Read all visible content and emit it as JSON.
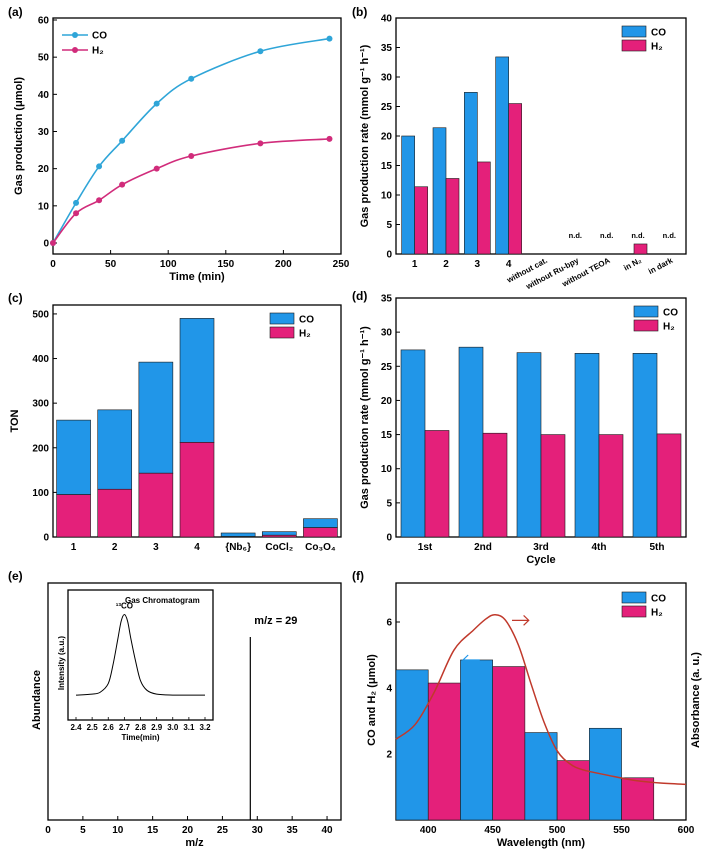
{
  "colors": {
    "co": "#2196E8",
    "h2": "#E4207A",
    "co_line": "#2FA5D8",
    "h2_line": "#D12C7B",
    "absorbance": "#C0392B",
    "axis": "#000000"
  },
  "chart_data": [
    {
      "panel": "(a)",
      "type": "line",
      "xlabel": "Time (min)",
      "ylabel": "Gas production (μmol)",
      "xlim": [
        0,
        250
      ],
      "ylim": [
        0,
        60
      ],
      "xticks": [
        0,
        50,
        100,
        150,
        200,
        250
      ],
      "yticks": [
        0,
        10,
        20,
        30,
        40,
        50,
        60
      ],
      "legend_position": "top-left",
      "series": [
        {
          "name": "CO",
          "x": [
            0,
            20,
            40,
            60,
            90,
            120,
            180,
            240
          ],
          "y": [
            0,
            10.8,
            20.6,
            27.5,
            37.5,
            44.2,
            51.6,
            55.0
          ]
        },
        {
          "name": "H₂",
          "x": [
            0,
            20,
            40,
            60,
            90,
            120,
            180,
            240
          ],
          "y": [
            0,
            8.0,
            11.5,
            15.7,
            20.0,
            23.4,
            26.8,
            28.0
          ]
        }
      ]
    },
    {
      "panel": "(b)",
      "type": "bar",
      "ylabel": "Gas production rate (mmol g⁻¹ h⁻¹)",
      "ylim": [
        0,
        40
      ],
      "yticks": [
        0,
        5,
        10,
        15,
        20,
        25,
        30,
        35,
        40
      ],
      "legend_position": "top-right",
      "categories": [
        "1",
        "2",
        "3",
        "4",
        "without cat.",
        "without Ru-bpy",
        "without TEOA",
        "in N₂",
        "in dark"
      ],
      "annotations": [
        "",
        "",
        "",
        "",
        "",
        "n.d.",
        "n.d.",
        "n.d.",
        "n.d."
      ],
      "series": [
        {
          "name": "CO",
          "values": [
            20.0,
            21.4,
            27.4,
            33.4,
            0,
            0,
            0,
            0,
            0
          ]
        },
        {
          "name": "H₂",
          "values": [
            11.4,
            12.8,
            15.6,
            25.5,
            0,
            0,
            0,
            1.7,
            0
          ]
        }
      ]
    },
    {
      "panel": "(c)",
      "type": "bar",
      "stacked": true,
      "ylabel": "TON",
      "ylim": [
        0,
        520
      ],
      "yticks": [
        0,
        100,
        200,
        300,
        400,
        500
      ],
      "legend_position": "top-right",
      "categories": [
        "1",
        "2",
        "3",
        "4",
        "{Nb₆}",
        "CoCl₂",
        "Co₃O₄"
      ],
      "series": [
        {
          "name": "CO",
          "values": [
            167,
            178,
            249,
            278,
            8,
            8,
            20
          ]
        },
        {
          "name": "H₂",
          "values": [
            95,
            107,
            143,
            212,
            1,
            4,
            21
          ]
        }
      ]
    },
    {
      "panel": "(d)",
      "type": "bar",
      "xlabel": "Cycle",
      "ylabel": "Gas production rate (mmol g⁻¹ h⁻¹)",
      "ylim": [
        0,
        35
      ],
      "yticks": [
        0,
        5,
        10,
        15,
        20,
        25,
        30,
        35
      ],
      "legend_position": "top-right",
      "categories": [
        "1st",
        "2nd",
        "3rd",
        "4th",
        "5th"
      ],
      "series": [
        {
          "name": "CO",
          "values": [
            27.4,
            27.8,
            27.0,
            26.9,
            26.9
          ]
        },
        {
          "name": "H₂",
          "values": [
            15.6,
            15.2,
            15.0,
            15.0,
            15.1
          ]
        }
      ]
    },
    {
      "panel": "(e)",
      "type": "line",
      "xlabel": "m/z",
      "ylabel": "Abundance",
      "xlim": [
        0,
        42
      ],
      "xticks": [
        0,
        5,
        10,
        15,
        20,
        25,
        30,
        35,
        40
      ],
      "annotation": "m/z = 29",
      "peak_x": 29,
      "inset": {
        "title": "Gas Chromatogram",
        "peak_label": "¹³CO",
        "xlabel": "Time(min)",
        "ylabel": "Intensity (a.u.)",
        "xlim": [
          2.4,
          3.2
        ],
        "xticks": [
          "2.4",
          "2.5",
          "2.6",
          "2.7",
          "2.8",
          "2.9",
          "3.0",
          "3.1",
          "3.2"
        ],
        "x": [
          2.4,
          2.5,
          2.55,
          2.6,
          2.63,
          2.66,
          2.68,
          2.7,
          2.72,
          2.74,
          2.77,
          2.8,
          2.84,
          2.9,
          3.0,
          3.1,
          3.2
        ],
        "y": [
          0.03,
          0.04,
          0.06,
          0.15,
          0.35,
          0.62,
          0.8,
          0.87,
          0.8,
          0.62,
          0.38,
          0.18,
          0.08,
          0.04,
          0.03,
          0.03,
          0.03
        ]
      }
    },
    {
      "panel": "(f)",
      "type": "bar",
      "xlabel": "Wavelength (nm)",
      "ylabel": "CO and H₂ (μmol)",
      "ylabel_right": "Absorbance (a. u.)",
      "xlim": [
        375,
        600
      ],
      "xticks": [
        400,
        450,
        500,
        550,
        600
      ],
      "ylim": [
        0,
        7
      ],
      "yticks": [
        2,
        4,
        6
      ],
      "legend_position": "top-right",
      "categories": [
        400,
        450,
        500,
        550
      ],
      "series": [
        {
          "name": "CO",
          "values": [
            4.55,
            4.85,
            2.65,
            2.78
          ]
        },
        {
          "name": "H₂",
          "values": [
            4.15,
            4.65,
            1.8,
            1.28
          ]
        }
      ],
      "absorbance": {
        "x": [
          375,
          390,
          405,
          420,
          435,
          445,
          452,
          460,
          470,
          480,
          490,
          500,
          510,
          520,
          540,
          560,
          580,
          600
        ],
        "y": [
          2.45,
          2.9,
          3.9,
          5.15,
          5.75,
          6.1,
          6.22,
          6.05,
          5.3,
          4.1,
          2.95,
          2.1,
          1.7,
          1.52,
          1.35,
          1.2,
          1.12,
          1.08
        ]
      }
    }
  ]
}
